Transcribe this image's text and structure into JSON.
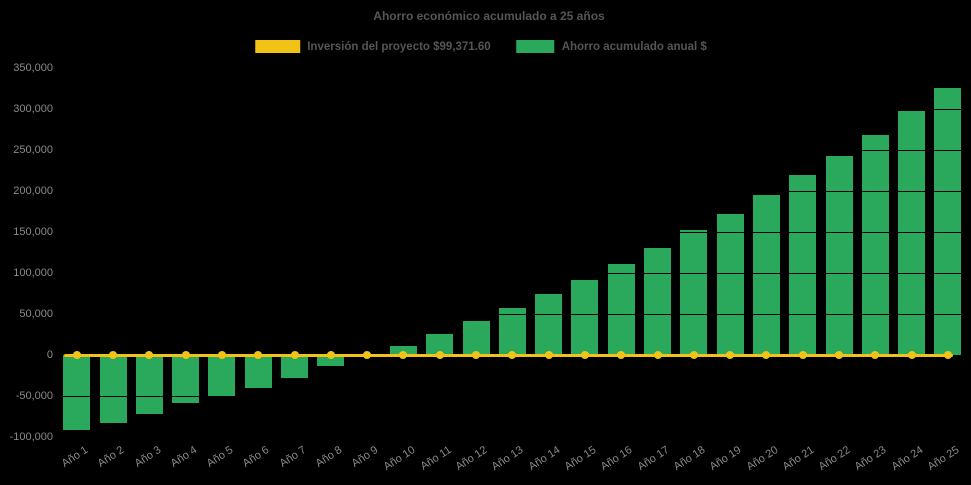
{
  "title": "Ahorro económico acumulado a 25 años",
  "legend": {
    "items": [
      {
        "label": "Inversión del proyecto $99,371.60",
        "color": "#f0c316",
        "icon": "line-swatch"
      },
      {
        "label": "Ahorro acumulado anual $",
        "color": "#2aa85c",
        "icon": "bar-swatch"
      }
    ]
  },
  "colors": {
    "background": "#000000",
    "bar": "#2aa85c",
    "investment_line": "#f0c316",
    "title_text": "#565656",
    "legend_text": "#555555",
    "tick_text": "#8a8a8a",
    "gridline": "#000000"
  },
  "chart_data": {
    "type": "bar",
    "title": "Ahorro económico acumulado a 25 años",
    "categories": [
      "Año 1",
      "Año 2",
      "Año 3",
      "Año 4",
      "Año 5",
      "Año 6",
      "Año 7",
      "Año 8",
      "Año 9",
      "Año 10",
      "Año 11",
      "Año 12",
      "Año 13",
      "Año 14",
      "Año 15",
      "Año 16",
      "Año 17",
      "Año 18",
      "Año 19",
      "Año 20",
      "Año 21",
      "Año 22",
      "Año 23",
      "Año 24",
      "Año 25"
    ],
    "series": [
      {
        "name": "Ahorro acumulado anual $",
        "type": "bar",
        "color": "#2aa85c",
        "values": [
          -92000,
          -83000,
          -72000,
          -59000,
          -51500,
          -40500,
          -27500,
          -13500,
          -1000,
          11000,
          25500,
          42000,
          57500,
          74500,
          92000,
          110500,
          131000,
          153000,
          172000,
          195000,
          219500,
          243000,
          268500,
          297500,
          325500
        ]
      },
      {
        "name": "Inversión del proyecto $99,371.60",
        "type": "line",
        "color": "#f0c316",
        "y_value": 0,
        "markers": true
      }
    ],
    "xlabel": "",
    "ylabel": "",
    "ylim": [
      -100000,
      350000
    ],
    "ytick_step": 50000,
    "ytick_labels": [
      "350,000",
      "300,000",
      "250,000",
      "200,000",
      "150,000",
      "100,000",
      "50,000",
      "0",
      "-50,000",
      "-100,000"
    ],
    "grid": true,
    "legend_position": "top-center",
    "x_tick_angle_deg": -33
  }
}
